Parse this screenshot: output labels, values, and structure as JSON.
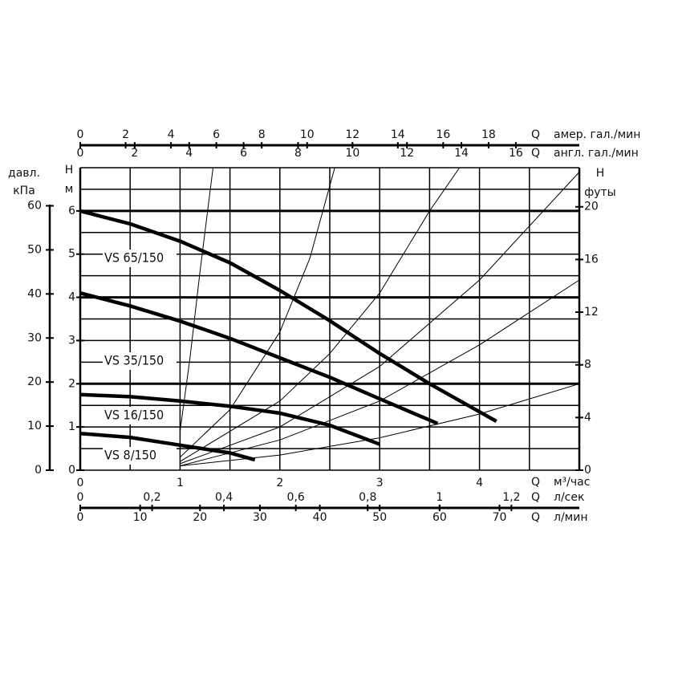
{
  "chart_data": {
    "type": "line",
    "grid": true,
    "grid_x": [
      0,
      0.5,
      1,
      1.5,
      2,
      2.5,
      3,
      3.5,
      4,
      4.5,
      5
    ],
    "grid_y": [
      0,
      0.5,
      1,
      1.5,
      2,
      2.5,
      3,
      3.5,
      4,
      4.5,
      5,
      5.5,
      6,
      6.5,
      7
    ],
    "xlim": [
      0,
      5
    ],
    "ylim": [
      0,
      7
    ],
    "x_axes": [
      {
        "q": "Q",
        "label": "м³/час",
        "lim": [
          0,
          5
        ],
        "ticks": [
          0,
          1,
          2,
          3,
          4
        ]
      },
      {
        "q": "Q",
        "label": "л/сек",
        "lim": [
          0,
          1.389
        ],
        "ticks": [
          0,
          {
            "value": 0.2,
            "label": "0,2"
          },
          {
            "value": 0.4,
            "label": "0,4"
          },
          {
            "value": 0.6,
            "label": "0,6"
          },
          {
            "value": 0.8,
            "label": "0,8"
          },
          1,
          {
            "value": 1.2,
            "label": "1,2"
          }
        ]
      },
      {
        "q": "Q",
        "label": "л/мин",
        "lim": [
          0,
          83.33
        ],
        "ticks": [
          0,
          10,
          20,
          30,
          40,
          50,
          60,
          70
        ]
      },
      {
        "q": "Q",
        "label": "амер. гал./мин",
        "lim": [
          0,
          22.0
        ],
        "ticks": [
          0,
          2,
          4,
          6,
          8,
          10,
          12,
          14,
          16,
          18
        ]
      },
      {
        "q": "Q",
        "label": "англ. гал./мин",
        "lim": [
          0,
          18.33
        ],
        "ticks": [
          0,
          2,
          4,
          6,
          8,
          10,
          12,
          14,
          16
        ]
      }
    ],
    "y_axes": [
      {
        "label": [
          "давл.",
          "кПа"
        ],
        "lim": [
          0,
          68.65
        ],
        "ticks": [
          0,
          10,
          20,
          30,
          40,
          50,
          60
        ]
      },
      {
        "label": [
          "H",
          "м"
        ],
        "lim": [
          0,
          7
        ],
        "ticks": [
          0,
          1,
          2,
          3,
          4,
          5,
          6
        ]
      },
      {
        "label": [
          "H",
          "футы"
        ],
        "lim": [
          0,
          22.97
        ],
        "ticks": [
          0,
          4,
          8,
          12,
          16,
          20
        ]
      }
    ],
    "series": [
      {
        "name": "VS 65/150",
        "color": "#000000",
        "x": [
          0,
          0.5,
          1,
          1.5,
          2,
          2.5,
          3,
          3.5,
          4.17
        ],
        "values": [
          6.0,
          5.7,
          5.3,
          4.8,
          4.16,
          3.46,
          2.7,
          2.0,
          1.13
        ]
      },
      {
        "name": "VS 35/150",
        "color": "#000000",
        "x": [
          0,
          0.5,
          1,
          1.5,
          2,
          2.5,
          3,
          3.58
        ],
        "values": [
          4.1,
          3.8,
          3.45,
          3.05,
          2.6,
          2.15,
          1.65,
          1.08
        ]
      },
      {
        "name": "VS 16/150",
        "color": "#000000",
        "x": [
          0,
          0.5,
          1,
          1.5,
          2,
          2.5,
          3.0
        ],
        "values": [
          1.75,
          1.7,
          1.6,
          1.48,
          1.32,
          1.04,
          0.6
        ]
      },
      {
        "name": "VS 8/150",
        "color": "#000000",
        "x": [
          0,
          0.5,
          1,
          1.5,
          1.75
        ],
        "values": [
          0.85,
          0.76,
          0.58,
          0.4,
          0.24
        ]
      }
    ],
    "system_curves": [
      {
        "x": [
          1,
          1.1,
          1.2,
          1.33
        ],
        "values": [
          0.9,
          2.6,
          4.6,
          7.0
        ]
      },
      {
        "x": [
          1,
          1.5,
          2,
          2.3,
          2.55
        ],
        "values": [
          0.3,
          1.4,
          3.2,
          4.9,
          7.0
        ]
      },
      {
        "x": [
          1,
          2,
          2.5,
          3,
          3.5,
          3.8
        ],
        "values": [
          0.2,
          1.6,
          2.7,
          4.1,
          6.0,
          7.0
        ]
      },
      {
        "x": [
          1,
          2,
          3,
          4,
          5
        ],
        "values": [
          0.15,
          1.0,
          2.4,
          4.4,
          6.9
        ]
      },
      {
        "x": [
          1,
          2,
          3,
          4,
          5
        ],
        "values": [
          0.1,
          0.7,
          1.6,
          2.9,
          4.4
        ]
      },
      {
        "x": [
          1,
          2,
          3,
          4,
          5
        ],
        "values": [
          0.1,
          0.35,
          0.75,
          1.3,
          2.0
        ]
      }
    ]
  }
}
